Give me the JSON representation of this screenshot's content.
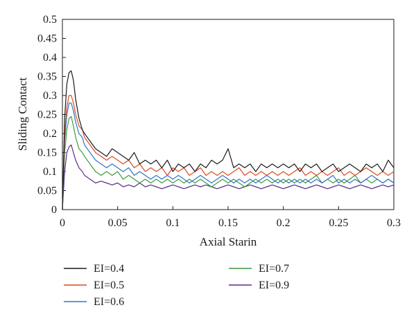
{
  "chart_data": {
    "type": "line",
    "xlabel": "Axial Starin",
    "ylabel": "Sliding Contact",
    "xlim": [
      0,
      0.3
    ],
    "ylim": [
      0,
      0.5
    ],
    "x_ticks": [
      0,
      0.05,
      0.1,
      0.15,
      0.2,
      0.25,
      0.3
    ],
    "x_tick_labels": [
      "0",
      "0.05",
      "0.1",
      "0.15",
      "0.2",
      "0.25",
      "0.3"
    ],
    "y_ticks": [
      0,
      0.05,
      0.1,
      0.15,
      0.2,
      0.25,
      0.3,
      0.35,
      0.4,
      0.45,
      0.5
    ],
    "y_tick_labels": [
      "0",
      "0.05",
      "0.1",
      "0.15",
      "0.2",
      "0.25",
      "0.3",
      "0.35",
      "0.4",
      "0.45",
      "0.5"
    ],
    "grid": false,
    "legend_position": "bottom",
    "x": [
      0,
      0.002,
      0.004,
      0.006,
      0.008,
      0.01,
      0.012,
      0.015,
      0.018,
      0.02,
      0.025,
      0.03,
      0.035,
      0.04,
      0.045,
      0.05,
      0.055,
      0.06,
      0.065,
      0.07,
      0.075,
      0.08,
      0.085,
      0.09,
      0.095,
      0.1,
      0.105,
      0.11,
      0.115,
      0.12,
      0.125,
      0.13,
      0.135,
      0.14,
      0.145,
      0.15,
      0.155,
      0.16,
      0.165,
      0.17,
      0.175,
      0.18,
      0.185,
      0.19,
      0.195,
      0.2,
      0.205,
      0.21,
      0.215,
      0.22,
      0.225,
      0.23,
      0.235,
      0.24,
      0.245,
      0.25,
      0.255,
      0.26,
      0.265,
      0.27,
      0.275,
      0.28,
      0.285,
      0.29,
      0.295,
      0.3
    ],
    "series": [
      {
        "name": "EI=0.4",
        "color": "#1a1a1a",
        "values": [
          0,
          0.24,
          0.33,
          0.36,
          0.365,
          0.34,
          0.29,
          0.24,
          0.21,
          0.2,
          0.18,
          0.16,
          0.15,
          0.14,
          0.16,
          0.15,
          0.14,
          0.13,
          0.15,
          0.12,
          0.13,
          0.12,
          0.13,
          0.11,
          0.13,
          0.1,
          0.12,
          0.11,
          0.12,
          0.1,
          0.12,
          0.11,
          0.13,
          0.12,
          0.13,
          0.16,
          0.11,
          0.12,
          0.11,
          0.12,
          0.1,
          0.12,
          0.11,
          0.12,
          0.11,
          0.12,
          0.11,
          0.12,
          0.1,
          0.12,
          0.11,
          0.12,
          0.1,
          0.11,
          0.12,
          0.1,
          0.11,
          0.12,
          0.11,
          0.1,
          0.12,
          0.11,
          0.12,
          0.1,
          0.13,
          0.11
        ]
      },
      {
        "name": "EI=0.5",
        "color": "#d94a1e",
        "values": [
          0,
          0.2,
          0.27,
          0.3,
          0.3,
          0.28,
          0.25,
          0.22,
          0.21,
          0.19,
          0.17,
          0.15,
          0.14,
          0.13,
          0.14,
          0.13,
          0.12,
          0.13,
          0.11,
          0.12,
          0.1,
          0.11,
          0.1,
          0.11,
          0.09,
          0.11,
          0.1,
          0.11,
          0.09,
          0.1,
          0.11,
          0.09,
          0.1,
          0.09,
          0.1,
          0.09,
          0.1,
          0.11,
          0.09,
          0.1,
          0.09,
          0.1,
          0.09,
          0.1,
          0.09,
          0.1,
          0.09,
          0.1,
          0.11,
          0.09,
          0.1,
          0.09,
          0.1,
          0.09,
          0.1,
          0.11,
          0.09,
          0.1,
          0.09,
          0.1,
          0.11,
          0.1,
          0.09,
          0.1,
          0.09,
          0.1
        ]
      },
      {
        "name": "EI=0.6",
        "color": "#2e72c8",
        "values": [
          0,
          0.18,
          0.25,
          0.28,
          0.28,
          0.26,
          0.23,
          0.2,
          0.19,
          0.17,
          0.15,
          0.13,
          0.12,
          0.11,
          0.12,
          0.11,
          0.1,
          0.11,
          0.09,
          0.1,
          0.09,
          0.08,
          0.09,
          0.08,
          0.09,
          0.08,
          0.09,
          0.08,
          0.07,
          0.08,
          0.09,
          0.08,
          0.07,
          0.08,
          0.09,
          0.08,
          0.07,
          0.08,
          0.07,
          0.08,
          0.07,
          0.08,
          0.09,
          0.08,
          0.07,
          0.08,
          0.07,
          0.08,
          0.07,
          0.08,
          0.07,
          0.08,
          0.07,
          0.08,
          0.09,
          0.07,
          0.08,
          0.07,
          0.08,
          0.07,
          0.08,
          0.09,
          0.08,
          0.07,
          0.08,
          0.07
        ]
      },
      {
        "name": "EI=0.7",
        "color": "#3a9a3a",
        "values": [
          0,
          0.15,
          0.21,
          0.24,
          0.245,
          0.22,
          0.19,
          0.16,
          0.15,
          0.14,
          0.12,
          0.1,
          0.09,
          0.1,
          0.09,
          0.1,
          0.08,
          0.09,
          0.08,
          0.07,
          0.08,
          0.07,
          0.08,
          0.07,
          0.08,
          0.07,
          0.08,
          0.07,
          0.08,
          0.07,
          0.08,
          0.07,
          0.06,
          0.07,
          0.08,
          0.07,
          0.08,
          0.07,
          0.06,
          0.07,
          0.08,
          0.07,
          0.08,
          0.07,
          0.08,
          0.07,
          0.08,
          0.07,
          0.08,
          0.07,
          0.08,
          0.09,
          0.07,
          0.08,
          0.07,
          0.08,
          0.07,
          0.08,
          0.09,
          0.07,
          0.08,
          0.07,
          0.08,
          0.07,
          0.08,
          0.07
        ]
      },
      {
        "name": "EI=0.9",
        "color": "#5a2a8a",
        "values": [
          0,
          0.1,
          0.15,
          0.165,
          0.17,
          0.15,
          0.13,
          0.11,
          0.1,
          0.09,
          0.08,
          0.07,
          0.075,
          0.07,
          0.065,
          0.07,
          0.06,
          0.065,
          0.06,
          0.07,
          0.06,
          0.065,
          0.06,
          0.055,
          0.06,
          0.065,
          0.06,
          0.055,
          0.06,
          0.065,
          0.06,
          0.065,
          0.06,
          0.055,
          0.06,
          0.065,
          0.06,
          0.055,
          0.06,
          0.065,
          0.06,
          0.055,
          0.06,
          0.065,
          0.06,
          0.055,
          0.06,
          0.065,
          0.06,
          0.055,
          0.06,
          0.065,
          0.06,
          0.055,
          0.06,
          0.065,
          0.06,
          0.055,
          0.06,
          0.065,
          0.06,
          0.055,
          0.06,
          0.065,
          0.06,
          0.065
        ]
      }
    ]
  }
}
